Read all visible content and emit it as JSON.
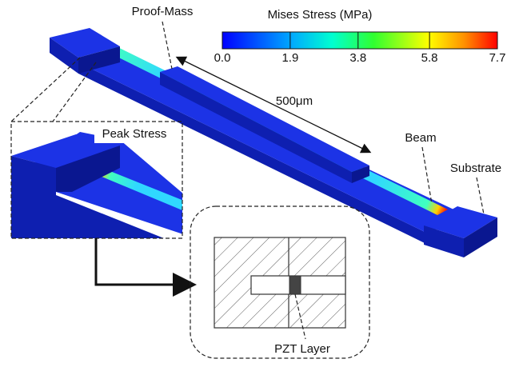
{
  "colorbar": {
    "title": "Mises Stress (MPa)",
    "range": [
      0,
      7.7
    ],
    "ticks": [
      {
        "value": 0,
        "label": "0.0"
      },
      1.9,
      3.8,
      5.8,
      7.7
    ]
  },
  "labels": {
    "proof_mass": "Proof-Mass",
    "length": "500μm",
    "peak_stress": "Peak Stress",
    "beam": "Beam",
    "substrate": "Substrate",
    "pzt_layer": "PZT Layer"
  }
}
